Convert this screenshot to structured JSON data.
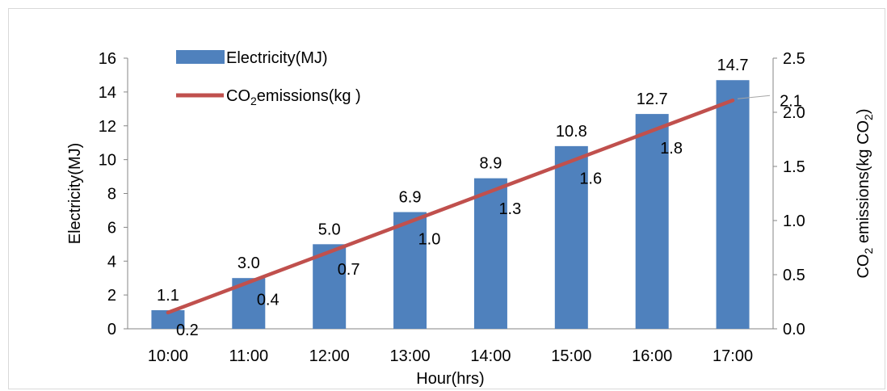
{
  "chart_data": {
    "type": "bar",
    "categories": [
      "10:00",
      "11:00",
      "12:00",
      "13:00",
      "14:00",
      "15:00",
      "16:00",
      "17:00"
    ],
    "series": [
      {
        "name": "Electricity(MJ)",
        "type": "bar",
        "axis": "left",
        "color": "#4f81bd",
        "values": [
          1.1,
          3.0,
          5.0,
          6.9,
          8.9,
          10.8,
          12.7,
          14.7
        ],
        "labels": [
          "1.1",
          "3.0",
          "5.0",
          "6.9",
          "8.9",
          "10.8",
          "12.7",
          "14.7"
        ]
      },
      {
        "name_parts": [
          "CO",
          "2",
          "emissions(kg )"
        ],
        "type": "line",
        "axis": "right",
        "color": "#c0504d",
        "values": [
          0.15,
          0.43,
          0.71,
          0.99,
          1.27,
          1.55,
          1.83,
          2.11
        ],
        "labels": [
          "0.2",
          "0.4",
          "0.7",
          "1.0",
          "1.3",
          "1.6",
          "1.8",
          "2.1"
        ]
      }
    ],
    "xlabel": "Hour(hrs)",
    "ylabel": "Electricity(MJ)",
    "y2label_parts": [
      "CO",
      "2",
      " emissions(kg CO",
      "2",
      ")"
    ],
    "ylim": [
      0,
      16
    ],
    "yticks": [
      "0",
      "2",
      "4",
      "6",
      "8",
      "10",
      "12",
      "14",
      "16"
    ],
    "y2lim": [
      0,
      2.5
    ],
    "y2ticks": [
      "0.0",
      "0.5",
      "1.0",
      "1.5",
      "2.0",
      "2.5"
    ],
    "grid": false,
    "legend_position": "top-left"
  }
}
